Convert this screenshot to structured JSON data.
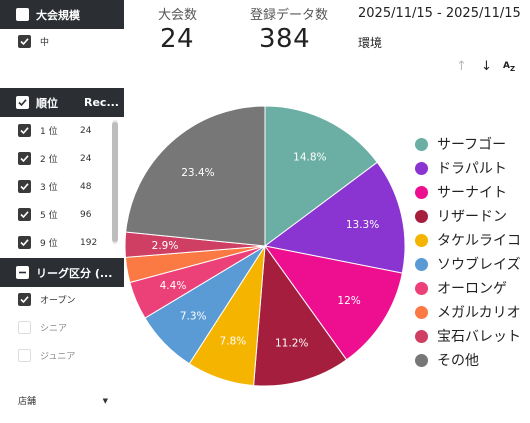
{
  "filters": {
    "size": {
      "title": "大会規模",
      "items": [
        {
          "label": "中",
          "checked": true
        }
      ]
    },
    "rank": {
      "title": "順位",
      "col2": "Rec...",
      "items": [
        {
          "label": "1 位",
          "count": "24",
          "checked": true
        },
        {
          "label": "2 位",
          "count": "24",
          "checked": true
        },
        {
          "label": "3 位",
          "count": "48",
          "checked": true
        },
        {
          "label": "5 位",
          "count": "96",
          "checked": true
        },
        {
          "label": "9 位",
          "count": "192",
          "checked": true
        }
      ]
    },
    "league": {
      "title": "リーグ区分 (...",
      "items": [
        {
          "label": "オープン",
          "checked": true
        },
        {
          "label": "シニア",
          "checked": false
        },
        {
          "label": "ジュニア",
          "checked": false
        }
      ]
    },
    "store": {
      "label": "店舗"
    }
  },
  "scorecards": {
    "tournaments": {
      "label": "大会数",
      "value": "24"
    },
    "records": {
      "label": "登録データ数",
      "value": "384"
    }
  },
  "date_range": "2025/11/15 - 2025/11/15",
  "env_label": "環境",
  "sort_icons": [
    "arrow-up-icon",
    "arrow-down-icon",
    "sort-az-icon"
  ],
  "chart_data": {
    "type": "pie",
    "slices": [
      {
        "name": "サーフゴー",
        "value": 14.8,
        "label": "14.8%",
        "color": "#6aaea4"
      },
      {
        "name": "ドラパルト",
        "value": 13.3,
        "label": "13.3%",
        "color": "#8a35d1"
      },
      {
        "name": "サーナイト",
        "value": 12.0,
        "label": "12%",
        "color": "#ee0f90"
      },
      {
        "name": "リザードン",
        "value": 11.2,
        "label": "11.2%",
        "color": "#a51e3e"
      },
      {
        "name": "タケルライコ",
        "value": 7.8,
        "label": "7.8%",
        "color": "#f5b400"
      },
      {
        "name": "ソウブレイズ",
        "value": 7.3,
        "label": "7.3%",
        "color": "#5a9bd5"
      },
      {
        "name": "オーロンゲ",
        "value": 4.4,
        "label": "4.4%",
        "color": "#ec4079"
      },
      {
        "name": "メガルカリオ",
        "value": 2.9,
        "label": "",
        "color": "#fb7a43"
      },
      {
        "name": "宝石バレット",
        "value": 2.9,
        "label": "2.9%",
        "color": "#cf3f64"
      },
      {
        "name": "その他",
        "value": 23.4,
        "label": "23.4%",
        "color": "#777777"
      }
    ],
    "legend_position": "right"
  }
}
